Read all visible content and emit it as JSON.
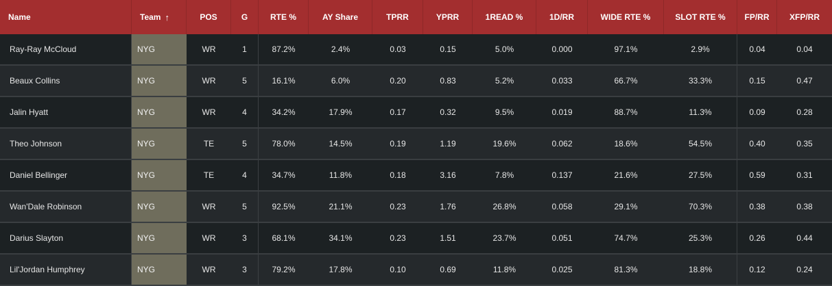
{
  "columns": [
    {
      "key": "name",
      "label": "Name"
    },
    {
      "key": "team",
      "label": "Team",
      "sort_icon": "arrow-up-icon"
    },
    {
      "key": "pos",
      "label": "POS"
    },
    {
      "key": "g",
      "label": "G"
    },
    {
      "key": "rte",
      "label": "RTE %"
    },
    {
      "key": "ay",
      "label": "AY Share"
    },
    {
      "key": "tprr",
      "label": "TPRR"
    },
    {
      "key": "yprr",
      "label": "YPRR"
    },
    {
      "key": "read1",
      "label": "1READ %"
    },
    {
      "key": "d1rr",
      "label": "1D/RR"
    },
    {
      "key": "wide",
      "label": "WIDE RTE %"
    },
    {
      "key": "slot",
      "label": "SLOT RTE %"
    },
    {
      "key": "fprr",
      "label": "FP/RR"
    },
    {
      "key": "xfprr",
      "label": "XFP/RR"
    }
  ],
  "sort_arrow": "↑",
  "rows": [
    {
      "name": "Ray-Ray McCloud",
      "team": "NYG",
      "pos": "WR",
      "g": "1",
      "rte": "87.2%",
      "ay": "2.4%",
      "tprr": "0.03",
      "yprr": "0.15",
      "read1": "5.0%",
      "d1rr": "0.000",
      "wide": "97.1%",
      "slot": "2.9%",
      "fprr": "0.04",
      "xfprr": "0.04"
    },
    {
      "name": "Beaux Collins",
      "team": "NYG",
      "pos": "WR",
      "g": "5",
      "rte": "16.1%",
      "ay": "6.0%",
      "tprr": "0.20",
      "yprr": "0.83",
      "read1": "5.2%",
      "d1rr": "0.033",
      "wide": "66.7%",
      "slot": "33.3%",
      "fprr": "0.15",
      "xfprr": "0.47"
    },
    {
      "name": "Jalin Hyatt",
      "team": "NYG",
      "pos": "WR",
      "g": "4",
      "rte": "34.2%",
      "ay": "17.9%",
      "tprr": "0.17",
      "yprr": "0.32",
      "read1": "9.5%",
      "d1rr": "0.019",
      "wide": "88.7%",
      "slot": "11.3%",
      "fprr": "0.09",
      "xfprr": "0.28"
    },
    {
      "name": "Theo Johnson",
      "team": "NYG",
      "pos": "TE",
      "g": "5",
      "rte": "78.0%",
      "ay": "14.5%",
      "tprr": "0.19",
      "yprr": "1.19",
      "read1": "19.6%",
      "d1rr": "0.062",
      "wide": "18.6%",
      "slot": "54.5%",
      "fprr": "0.40",
      "xfprr": "0.35"
    },
    {
      "name": "Daniel Bellinger",
      "team": "NYG",
      "pos": "TE",
      "g": "4",
      "rte": "34.7%",
      "ay": "11.8%",
      "tprr": "0.18",
      "yprr": "3.16",
      "read1": "7.8%",
      "d1rr": "0.137",
      "wide": "21.6%",
      "slot": "27.5%",
      "fprr": "0.59",
      "xfprr": "0.31"
    },
    {
      "name": "Wan'Dale Robinson",
      "team": "NYG",
      "pos": "WR",
      "g": "5",
      "rte": "92.5%",
      "ay": "21.1%",
      "tprr": "0.23",
      "yprr": "1.76",
      "read1": "26.8%",
      "d1rr": "0.058",
      "wide": "29.1%",
      "slot": "70.3%",
      "fprr": "0.38",
      "xfprr": "0.38"
    },
    {
      "name": "Darius Slayton",
      "team": "NYG",
      "pos": "WR",
      "g": "3",
      "rte": "68.1%",
      "ay": "34.1%",
      "tprr": "0.23",
      "yprr": "1.51",
      "read1": "23.7%",
      "d1rr": "0.051",
      "wide": "74.7%",
      "slot": "25.3%",
      "fprr": "0.26",
      "xfprr": "0.44"
    },
    {
      "name": "Lil'Jordan Humphrey",
      "team": "NYG",
      "pos": "WR",
      "g": "3",
      "rte": "79.2%",
      "ay": "17.8%",
      "tprr": "0.10",
      "yprr": "0.69",
      "read1": "11.8%",
      "d1rr": "0.025",
      "wide": "81.3%",
      "slot": "18.8%",
      "fprr": "0.12",
      "xfprr": "0.24"
    }
  ],
  "colors": {
    "header": "#a32e2f",
    "team_cell": "#6f6d5c",
    "row_dark": "#1c2123",
    "row_light": "#25292c"
  }
}
